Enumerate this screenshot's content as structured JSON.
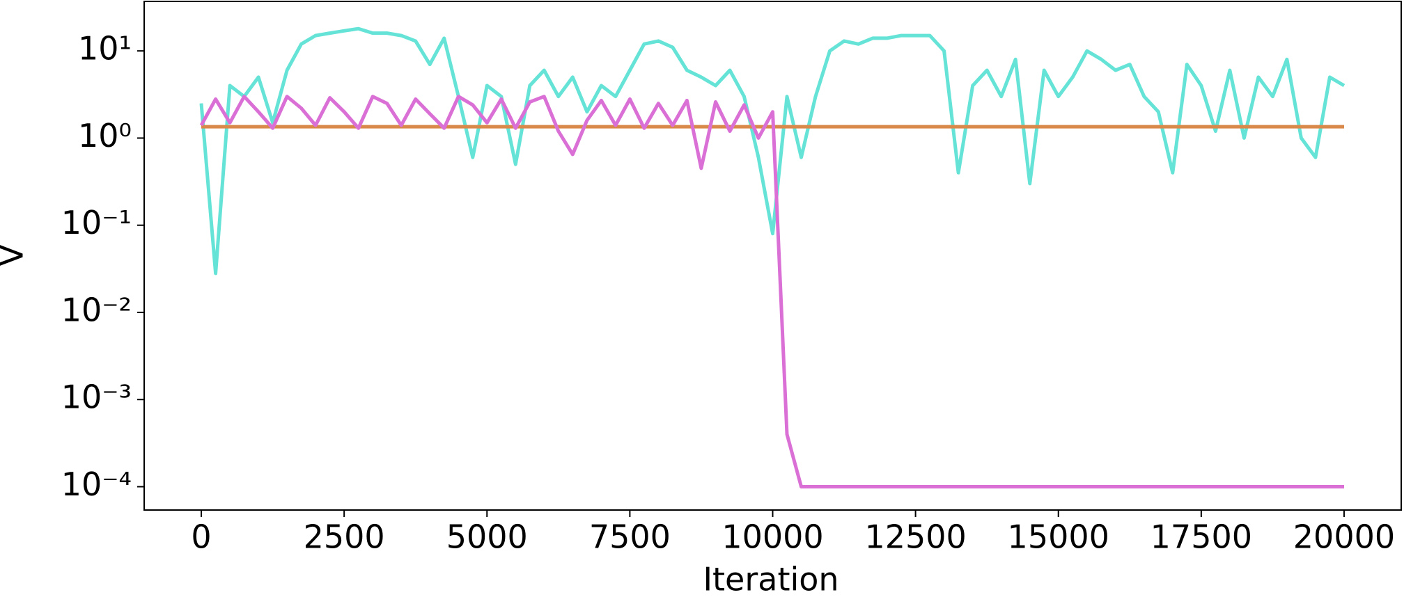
{
  "chart_data": {
    "type": "line",
    "xlabel": "Iteration",
    "ylabel": "V",
    "log_y": true,
    "grid": false,
    "x": [
      0,
      250,
      500,
      750,
      1000,
      1250,
      1500,
      1750,
      2000,
      2250,
      2500,
      2750,
      3000,
      3250,
      3500,
      3750,
      4000,
      4250,
      4500,
      4750,
      5000,
      5250,
      5500,
      5750,
      6000,
      6250,
      6500,
      6750,
      7000,
      7250,
      7500,
      7750,
      8000,
      8250,
      8500,
      8750,
      9000,
      9250,
      9500,
      9750,
      10000,
      10250,
      10500,
      10750,
      11000,
      11250,
      11500,
      11750,
      12000,
      12250,
      12500,
      12750,
      13000,
      13250,
      13500,
      13750,
      14000,
      14250,
      14500,
      14750,
      15000,
      15250,
      15500,
      15750,
      16000,
      16250,
      16500,
      16750,
      17000,
      17250,
      17500,
      17750,
      18000,
      18250,
      18500,
      18750,
      19000,
      19250,
      19500,
      19750,
      20000
    ],
    "series": [
      {
        "color": "#66e3d7",
        "values": [
          2.5,
          0.028,
          4,
          3,
          5,
          1.5,
          6,
          12,
          15,
          16,
          17,
          18,
          16,
          16,
          15,
          13,
          7,
          14,
          3,
          0.6,
          4,
          3,
          0.5,
          4,
          6,
          3,
          5,
          2,
          4,
          3,
          6,
          12,
          13,
          11,
          6,
          5,
          4,
          6,
          3,
          0.6,
          0.08,
          3,
          0.6,
          3,
          10,
          13,
          12,
          14,
          14,
          15,
          15,
          15,
          10,
          0.4,
          4,
          6,
          3,
          8,
          0.3,
          6,
          3,
          5,
          10,
          8,
          6,
          7,
          3,
          2,
          0.4,
          7,
          4,
          1.2,
          6,
          1,
          5,
          3,
          8,
          1,
          0.6,
          5,
          4
        ]
      },
      {
        "color": "#d9894a",
        "values": [
          1.35,
          1.35,
          1.35,
          1.35,
          1.35,
          1.35,
          1.35,
          1.35,
          1.35,
          1.35,
          1.35,
          1.35,
          1.35,
          1.35,
          1.35,
          1.35,
          1.35,
          1.35,
          1.35,
          1.35,
          1.35,
          1.35,
          1.35,
          1.35,
          1.35,
          1.35,
          1.35,
          1.35,
          1.35,
          1.35,
          1.35,
          1.35,
          1.35,
          1.35,
          1.35,
          1.35,
          1.35,
          1.35,
          1.35,
          1.35,
          1.35,
          1.35,
          1.35,
          1.35,
          1.35,
          1.35,
          1.35,
          1.35,
          1.35,
          1.35,
          1.35,
          1.35,
          1.35,
          1.35,
          1.35,
          1.35,
          1.35,
          1.35,
          1.35,
          1.35,
          1.35,
          1.35,
          1.35,
          1.35,
          1.35,
          1.35,
          1.35,
          1.35,
          1.35,
          1.35,
          1.35,
          1.35,
          1.35,
          1.35,
          1.35,
          1.35,
          1.35,
          1.35,
          1.35,
          1.35,
          1.35
        ]
      },
      {
        "color": "#da70d6",
        "values": [
          1.4,
          2.8,
          1.5,
          3,
          2,
          1.3,
          3,
          2.2,
          1.4,
          2.9,
          2,
          1.3,
          3,
          2.5,
          1.4,
          2.8,
          1.9,
          1.3,
          3,
          2.4,
          1.5,
          2.8,
          1.3,
          2.6,
          3,
          1.2,
          0.65,
          1.6,
          2.7,
          1.4,
          2.8,
          1.3,
          2.5,
          1.4,
          2.7,
          0.45,
          2.6,
          1.2,
          2.4,
          1,
          2,
          0.0004,
          0.0001,
          0.0001,
          0.0001,
          0.0001,
          0.0001,
          0.0001,
          0.0001,
          0.0001,
          0.0001,
          0.0001,
          0.0001,
          0.0001,
          0.0001,
          0.0001,
          0.0001,
          0.0001,
          0.0001,
          0.0001,
          0.0001,
          0.0001,
          0.0001,
          0.0001,
          0.0001,
          0.0001,
          0.0001,
          0.0001,
          0.0001,
          0.0001,
          0.0001,
          0.0001,
          0.0001,
          0.0001,
          0.0001,
          0.0001,
          0.0001,
          0.0001,
          0.0001,
          0.0001,
          0.0001
        ]
      }
    ],
    "xlim": [
      -1000,
      21000
    ],
    "xticks": [
      0,
      2500,
      5000,
      7500,
      10000,
      12500,
      15000,
      17500,
      20000
    ],
    "ylim": [
      5.4e-05,
      37
    ],
    "yticks": [
      {
        "value": 10,
        "label": "10¹"
      },
      {
        "value": 1,
        "label": "10⁰"
      },
      {
        "value": 0.1,
        "label": "10⁻¹"
      },
      {
        "value": 0.01,
        "label": "10⁻²"
      },
      {
        "value": 0.001,
        "label": "10⁻³"
      },
      {
        "value": 0.0001,
        "label": "10⁻⁴"
      }
    ]
  }
}
